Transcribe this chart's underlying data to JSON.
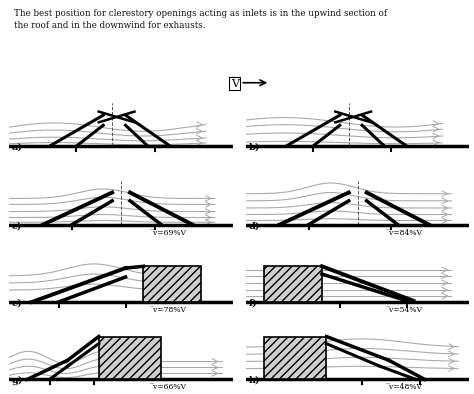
{
  "title_text": "The best position for clerestory openings acting as inlets is in the upwind section of\nthe roof and in the downwind for exhausts.",
  "labels": [
    "a)",
    "b)",
    "c)",
    "d)",
    "e)",
    "f)",
    "g)",
    "h)"
  ],
  "velocities": [
    "",
    "",
    "̅v=69%V",
    "̅v=84%V",
    "̅v=78%V",
    "̅v=54%V",
    "̅v=66%V",
    "̅v=48%V"
  ],
  "bg_color": "#ffffff",
  "line_color": "#000000",
  "gray": "#aaaaaa",
  "dgray": "#555555"
}
